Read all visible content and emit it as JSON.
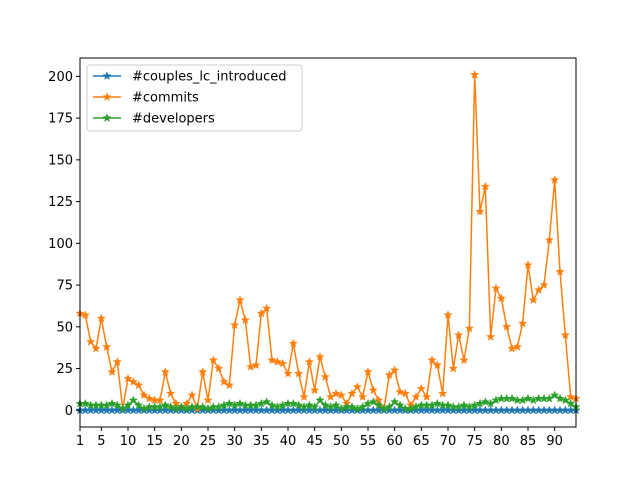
{
  "chart_data": {
    "type": "line",
    "title": "",
    "xlabel": "",
    "ylabel": "",
    "xlim": [
      1,
      94
    ],
    "ylim": [
      -10,
      211
    ],
    "x_ticks": [
      1,
      5,
      10,
      15,
      20,
      25,
      30,
      35,
      40,
      45,
      50,
      55,
      60,
      65,
      70,
      75,
      80,
      85,
      90
    ],
    "y_ticks": [
      0,
      25,
      50,
      75,
      100,
      125,
      150,
      175,
      200
    ],
    "legend_position": "upper-left",
    "grid": false,
    "marker": "star",
    "x": [
      1,
      2,
      3,
      4,
      5,
      6,
      7,
      8,
      9,
      10,
      11,
      12,
      13,
      14,
      15,
      16,
      17,
      18,
      19,
      20,
      21,
      22,
      23,
      24,
      25,
      26,
      27,
      28,
      29,
      30,
      31,
      32,
      33,
      34,
      35,
      36,
      37,
      38,
      39,
      40,
      41,
      42,
      43,
      44,
      45,
      46,
      47,
      48,
      49,
      50,
      51,
      52,
      53,
      54,
      55,
      56,
      57,
      58,
      59,
      60,
      61,
      62,
      63,
      64,
      65,
      66,
      67,
      68,
      69,
      70,
      71,
      72,
      73,
      74,
      75,
      76,
      77,
      78,
      79,
      80,
      81,
      82,
      83,
      84,
      85,
      86,
      87,
      88,
      89,
      90,
      91,
      92,
      93,
      94
    ],
    "series": [
      {
        "name": "#couples_lc_introduced",
        "color": "#1f77b4",
        "values": [
          0,
          0,
          0,
          0,
          0,
          0,
          0,
          0,
          0,
          0,
          0,
          0,
          0,
          0,
          0,
          0,
          0,
          0,
          0,
          0,
          0,
          0,
          0,
          0,
          0,
          0,
          0,
          0,
          0,
          0,
          0,
          0,
          0,
          0,
          0,
          0,
          0,
          0,
          0,
          0,
          0,
          0,
          0,
          0,
          0,
          0,
          0,
          0,
          0,
          0,
          0,
          0,
          0,
          0,
          0,
          0,
          0,
          0,
          0,
          0,
          0,
          0,
          0,
          0,
          0,
          0,
          0,
          0,
          0,
          0,
          0,
          0,
          0,
          0,
          0,
          0,
          0,
          0,
          0,
          0,
          0,
          0,
          0,
          0,
          0,
          0,
          0,
          0,
          0,
          0,
          0,
          0,
          0,
          0
        ]
      },
      {
        "name": "#commits",
        "color": "#ff7f0e",
        "values": [
          58,
          57,
          41,
          37,
          55,
          38,
          23,
          29,
          1,
          19,
          17,
          15,
          9,
          7,
          6,
          6,
          23,
          10,
          4,
          2,
          4,
          9,
          1,
          23,
          6,
          30,
          25,
          17,
          15,
          51,
          66,
          54,
          26,
          27,
          58,
          61,
          30,
          29,
          28,
          22,
          40,
          22,
          8,
          29,
          12,
          32,
          20,
          8,
          10,
          9,
          4,
          10,
          14,
          8,
          23,
          12,
          6,
          1,
          21,
          24,
          11,
          10,
          3,
          8,
          13,
          8,
          30,
          27,
          10,
          57,
          25,
          45,
          30,
          49,
          201,
          119,
          134,
          44,
          73,
          67,
          50,
          37,
          38,
          52,
          87,
          66,
          72,
          75,
          102,
          138,
          83,
          45,
          8,
          7
        ]
      },
      {
        "name": "#developers",
        "color": "#2ca02c",
        "values": [
          4,
          4,
          3,
          3,
          3,
          3,
          4,
          3,
          1,
          3,
          6,
          3,
          1,
          2,
          2,
          2,
          3,
          2,
          1,
          2,
          1,
          2,
          2,
          2,
          1,
          2,
          2,
          3,
          4,
          3,
          4,
          3,
          3,
          3,
          4,
          5,
          3,
          2,
          3,
          4,
          4,
          3,
          2,
          3,
          2,
          6,
          3,
          2,
          3,
          1,
          2,
          2,
          1,
          2,
          4,
          5,
          3,
          1,
          2,
          5,
          3,
          1,
          1,
          2,
          3,
          3,
          3,
          4,
          3,
          3,
          2,
          2,
          3,
          2,
          3,
          4,
          5,
          4,
          6,
          7,
          7,
          7,
          6,
          6,
          7,
          6,
          7,
          7,
          7,
          9,
          7,
          6,
          4,
          2
        ]
      }
    ]
  }
}
